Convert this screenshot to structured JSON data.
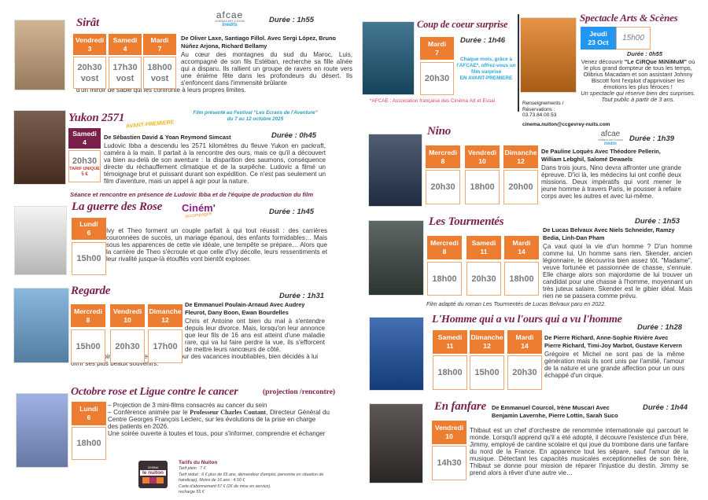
{
  "colors": {
    "session_header": "#ed7d31",
    "title": "#7b1f4b",
    "special_header": "#7b1f4b",
    "spectacle_header": "#2196f3",
    "promo_text": "#2aa7df",
    "footnote": "#e0405a"
  },
  "films": [
    {
      "title": "Sirât",
      "duration": "Durée : 1h55",
      "poster_color": "#c8a47c",
      "credits": "De Oliver Laxe, Santiago Fillol. Avec Sergi López, Bruno Núñez Arjona, Richard Bellamy",
      "desc": "Au cœur des montagnes du sud du Maroc, Luis, accompagné de son fils Estéban, recherche sa fille aînée qui a disparu. Ils rallient un groupe de ravers en route vers une énième fête dans les profondeurs du désert. Ils s'enfoncent dans l'immensité brûlante",
      "desc_tail": "d'un miroir de sable qui les confronte à leurs propres limites.",
      "sessions": [
        {
          "day": "Vendredi",
          "date": "3",
          "time": "20h30",
          "version": "vost"
        },
        {
          "day": "Samedi",
          "date": "4",
          "time": "17h30",
          "version": "vost"
        },
        {
          "day": "Mardi",
          "date": "7",
          "time": "18h00",
          "version": "vost"
        }
      ]
    },
    {
      "title": "Yukon 2571",
      "duration": "Durée : 0h45",
      "poster_color": "#5b3b2a",
      "credits": "De Sébastien David & Yoan Reymond Simcast",
      "desc": "Ludovic Ibba a descendu les 2571 kilomètres du fleuve Yukon en packraft, caméra à la main. Il partait à la rencontre des ours, mais ce qu'il a découvert va bien au-delà de son aventure : la disparition des saumons, conséquence directe du réchauffement climatique et de la surpêche. Ludovic a filmé un témoignage brut et puissant durant son expédition. Ce n'est pas seulement un film d'aventure, mais un appel à agir pour la nature.",
      "sessions": [
        {
          "day": "Samedi",
          "date": "4",
          "time": "20h30",
          "price": "TARIF UNIQUE",
          "price_value": "5 €"
        }
      ]
    },
    {
      "title": "La guerre des Rose",
      "duration": "Durée : 1h45",
      "poster_color": "#f2f2f0",
      "desc": "Ivy et Theo forment un couple parfait à qui tout réussit : des carrières couronnées de succès, un mariage épanoui, des enfants formidables… Mais sous les apparences de cette vie idéale, une tempête se prépare… Alors que la carrière de Theo s'écroule et que celle d'Ivy décolle, leurs ressentiments et leur rivalité jusque-là étouffés vont bientôt exploser.",
      "sessions": [
        {
          "day": "Lundi",
          "date": "6",
          "time": "15h00"
        }
      ]
    },
    {
      "title": "Regarde",
      "duration": "Durée : 1h31",
      "poster_color": "#6fa8d6",
      "credits": "De Emmanuel Poulain-Arnaud Avec Audrey Fleurot, Dany Boon, Ewan Bourdelles",
      "desc": "Chris et Antoine ont bien du mal à s'entendre depuis leur divorce. Mais, lorsqu'on leur annonce que leur fils de 16 ans est atteint d'une maladie rare, qui va lui faire perdre la vue, ils s'efforcent de mettre leurs rancœurs de côté.",
      "desc_tail": "Les ex-conjoints embarquent leur fils pour des vacances inoubliables, bien décidés à lui offrir ses plus beaux souvenirs.",
      "sessions": [
        {
          "day": "Mercredi",
          "date": "8",
          "time": "15h00"
        },
        {
          "day": "Vendredi",
          "date": "10",
          "time": "20h30"
        },
        {
          "day": "Dimanche",
          "date": "12",
          "time": "17h00"
        }
      ]
    },
    {
      "title": "Octobre rose et Ligue contre le cancer",
      "poster_color": "#8aa0dc",
      "sessions": [
        {
          "day": "Lundi",
          "date": "6",
          "time": "18h00"
        }
      ]
    },
    {
      "title": "Coup de coeur surprise",
      "duration": "Durée : 1h46",
      "poster_color": "#1d5a7a",
      "sessions": [
        {
          "day": "Mardi",
          "date": "7",
          "time": "20h30"
        }
      ]
    },
    {
      "title": "Nino",
      "duration": "Durée : 1h39",
      "poster_color": "#2a3a55",
      "credits": "De Pauline Loquès Avec Théodore Pellerin, William Lebghil, Salomé Dewaels",
      "desc": "Dans trois jours, Nino devra affronter une grande épreuve. D'ici là, les médecins lui ont confié deux missions. Deux impératifs qui vont mener le jeune homme à travers Paris, le pousser à refaire corps avec les autres et avec lui-même.",
      "sessions": [
        {
          "day": "Mercredi",
          "date": "8",
          "time": "20h30"
        },
        {
          "day": "Vendredi",
          "date": "10",
          "time": "18h00"
        },
        {
          "day": "Dimanche",
          "date": "12",
          "time": "20h00"
        }
      ]
    },
    {
      "title": "Les Tourmentés",
      "duration": "Durée : 1h53",
      "poster_color": "#3b4641",
      "credits": "De Lucas Belvaux Avec Niels Schneider, Ramzy Bedia, Linh-Dan Pham",
      "desc": "Ça vaut quoi la vie d'un homme ? D'un homme comme lui. Un homme sans rien. Skender, ancien légionnaire, le découvrira bien assez tôt. \"Madame\", veuve fortunée et passionnée de chasse, s'ennuie. Elle charge alors son majordome de lui trouver un candidat pour une chasse à l'homme, moyennant un très juteux salaire. Skender est le gibier idéal. Mais rien ne se passera comme prévu.",
      "sessions": [
        {
          "day": "Mercredi",
          "date": "8",
          "time": "18h00"
        },
        {
          "day": "Samedi",
          "date": "11",
          "time": "20h30"
        },
        {
          "day": "Mardi",
          "date": "14",
          "time": "18h00"
        }
      ]
    },
    {
      "title": "L'Homme qui a vu l'ours qui a vu l'homme",
      "duration": "Durée : 1h28",
      "poster_color": "#1a4fa0",
      "credits": "De Pierre Richard, Anne-Sophie Rivière Avec Pierre Richard, Timi-Joy Marbot, Gustave Kervern",
      "desc": "Grégoire et Michel ne sont pas de la même génération mais ils sont unis par l'amitié, l'amour de la nature et une grande affection pour un ours échappé d'un cirque.",
      "sessions": [
        {
          "day": "Samedi",
          "date": "11",
          "time": "18h00"
        },
        {
          "day": "Dimanche",
          "date": "12",
          "time": "15h00"
        },
        {
          "day": "Mardi",
          "date": "14",
          "time": "20h30"
        }
      ]
    },
    {
      "title": "En fanfare",
      "duration": "Durée : 1h44",
      "poster_color": "#3a3430",
      "credits": "De Emmanuel Courcol, Irène Muscari Avec Benjamin Lavernhe, Pierre Lottin, Sarah Suco",
      "desc": "Thibaut est un chef d'orchestre de renommée internationale qui parcourt le monde. Lorsqu'il apprend qu'il a été adopté, il découvre l'existence d'un frère, Jimmy, employé de cantine scolaire et qui joue du trombone dans une fanfare du nord de la France. En apparence tout les sépare, sauf l'amour de la musique. Détectant les capacités musicales exceptionnelles de son frère, Thibaut se donne pour mission de réparer l'injustice du destin. Jimmy se prend alors à rêver d'une autre vie…",
      "sessions": [
        {
          "day": "Vendredi",
          "date": "10",
          "time": "14h30"
        }
      ]
    }
  ],
  "extras": {
    "afcae_logo": {
      "text": "afcae",
      "sub": "CINÉMAS ART & ESSAI",
      "tag": "Inédits"
    },
    "cinem_logo": {
      "text": "Ciném'",
      "sub": "accompagne"
    },
    "yukon": {
      "avant_premiere": "AVANT-PREMIERE",
      "festival_1": "Film présenté au Festival “Les Ecrans de l'Aventure”",
      "festival_2": "du 7 au 12 octobre 2025",
      "note": "Séance et rencontre en présence de Ludovic Ibba et de l'équipe de production du film"
    },
    "octobre": {
      "subtitle": "(projection /rencontre)",
      "line1": "– Projection de 3 mini-films consacrés au cancer du sein",
      "line2a": "– Conférence animée par le ",
      "line2b": "Professeur Charles Coutant",
      "line2c": ", Directeur Général du Centre Georges François Leclerc, sur les évolutions de la prise en charge",
      "line3": "des patients en 2026.",
      "line4": "Une soirée ouverte à toutes et tous, pour s'informer, comprendre et échanger"
    },
    "tarifs": {
      "title": "Tarifs du Nuiton",
      "logo_top": "CINEMA",
      "logo_name": "le nuiton",
      "lines": [
        "Tarif plein : 7 €",
        "Tarif réduit : 6 € plus de 65 ans, demandeur d'emploi, personne en situation de handicap), Moins de 16 ans : 4.50 €",
        "Carte d'abonnement 57 € (2€ de mise en service).",
        "recharge 55 €"
      ]
    },
    "coup": {
      "promo": "Chaque mois, grâce à l'AFCAE*, offrez-vous un film surprise",
      "promo_caps": "EN AVANT-PREMIERE",
      "footnote": "*AFCAE : Association française des Cinéma Art et Essai"
    },
    "spectacle": {
      "title": "Spectacle Arts & Scènes",
      "day": "Jeudi",
      "date": "23 Oct",
      "time": "15h00",
      "duration": "Durée : 0h55",
      "desc_a": "Venez découvrir ",
      "desc_b": "\"Le CiRQue MiNiMuM\"",
      "desc_c": " où le plus grand dompteur de tous les temps, Olibrius Macadam et son assistant Johnny Biscott font l'exploit d'apprivoiser les émotions les plus féroces !",
      "desc_i1": "Un spectacle qui réserve bien des surprises.",
      "desc_i2": "Tout public à partir de 3 ans.",
      "poster_color": "#e07b1d"
    },
    "contact": {
      "label": "Renseignements / Réservations :",
      "phone": "03.73.84.00.53",
      "email": "cinema.nuiton@ccgevrey-nuits.com"
    },
    "tourmentes_note": "Film adapté du roman Les Tourmentés de Lucas Belvaux paru en 2022."
  }
}
